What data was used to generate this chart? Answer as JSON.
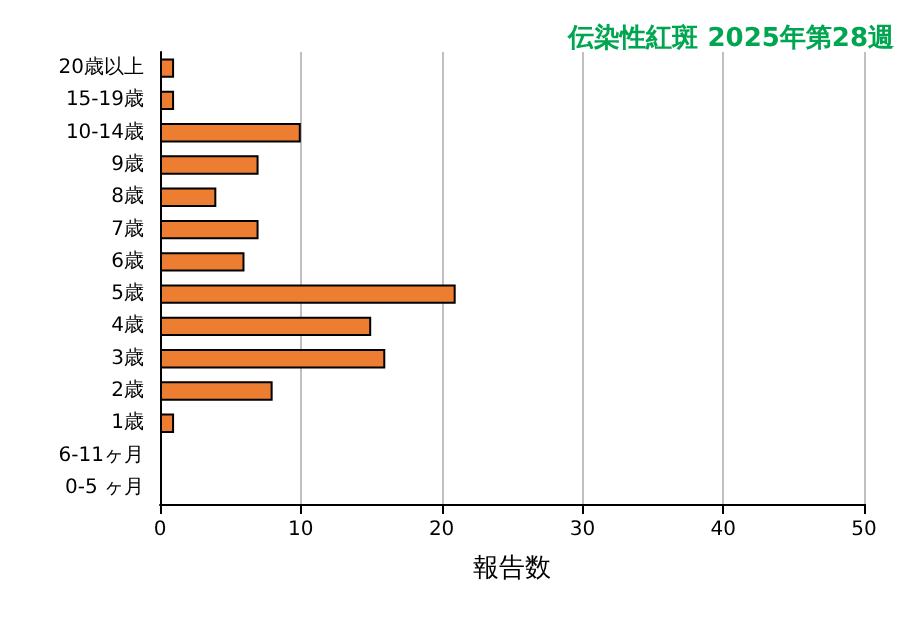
{
  "chart_data": {
    "type": "bar",
    "orientation": "horizontal",
    "title": "伝染性紅斑 2025年第28週",
    "xlabel": "報告数",
    "categories": [
      "20歳以上",
      "15-19歳",
      "10-14歳",
      "9歳",
      "8歳",
      "7歳",
      "6歳",
      "5歳",
      "4歳",
      "3歳",
      "2歳",
      "1歳",
      "6-11ヶ月",
      "0-5 ヶ月"
    ],
    "values": [
      1,
      1,
      10,
      7,
      4,
      7,
      6,
      21,
      15,
      16,
      8,
      1,
      0,
      0
    ],
    "color": "#ed7d31",
    "xlim": [
      0,
      50
    ],
    "xticks": [
      0,
      10,
      20,
      30,
      40,
      50
    ],
    "grid": "x"
  }
}
